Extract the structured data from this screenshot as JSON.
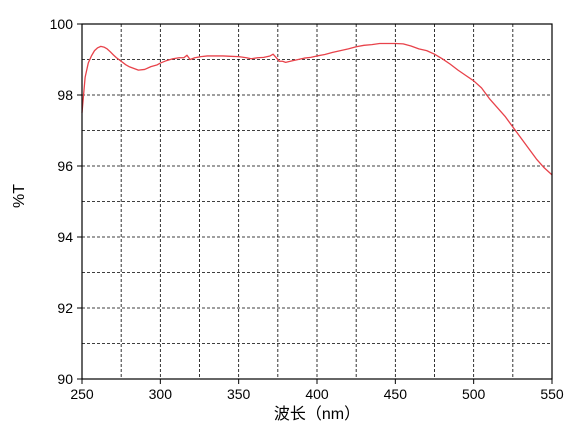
{
  "chart_data": {
    "type": "line",
    "xlabel": "波长（nm）",
    "ylabel": "%T",
    "xlim": [
      250,
      550
    ],
    "ylim": [
      90,
      100
    ],
    "x_ticks": [
      250,
      300,
      350,
      400,
      450,
      500,
      550
    ],
    "y_ticks": [
      90,
      92,
      94,
      96,
      98,
      100
    ],
    "x_tick_labels": [
      "250",
      "300",
      "350",
      "400",
      "450",
      "500",
      "550"
    ],
    "y_tick_labels": [
      "90",
      "92",
      "94",
      "96",
      "98",
      "100"
    ],
    "x_grid": [
      275,
      300,
      325,
      350,
      375,
      400,
      425,
      450,
      475,
      500,
      525
    ],
    "y_grid": [
      91,
      92,
      93,
      94,
      95,
      96,
      97,
      98,
      99
    ],
    "grid": true,
    "grid_style": "dashed",
    "colors": {
      "series": "#e8424a",
      "axis": "#000000",
      "grid": "#000000"
    },
    "series": [
      {
        "x": [
          250,
          252,
          254,
          256,
          258,
          260,
          262,
          264,
          266,
          268,
          270,
          272,
          275,
          278,
          280,
          283,
          286,
          290,
          294,
          298,
          300,
          304,
          308,
          312,
          315,
          317,
          319,
          322,
          326,
          330,
          335,
          340,
          345,
          350,
          355,
          358,
          362,
          366,
          370,
          372,
          374,
          376,
          378,
          380,
          384,
          388,
          392,
          396,
          400,
          405,
          410,
          415,
          420,
          425,
          430,
          435,
          440,
          445,
          450,
          455,
          460,
          465,
          470,
          475,
          480,
          485,
          490,
          495,
          500,
          505,
          510,
          515,
          520,
          525,
          530,
          535,
          540,
          545,
          550
        ],
        "y": [
          97.5,
          98.5,
          98.9,
          99.1,
          99.25,
          99.33,
          99.37,
          99.35,
          99.3,
          99.22,
          99.13,
          99.05,
          98.95,
          98.85,
          98.8,
          98.75,
          98.7,
          98.72,
          98.8,
          98.85,
          98.9,
          98.97,
          99.02,
          99.05,
          99.05,
          99.12,
          99.0,
          99.05,
          99.08,
          99.1,
          99.1,
          99.1,
          99.09,
          99.08,
          99.05,
          99.02,
          99.05,
          99.06,
          99.1,
          99.15,
          99.05,
          98.95,
          98.95,
          98.92,
          98.96,
          99.0,
          99.04,
          99.06,
          99.1,
          99.14,
          99.2,
          99.25,
          99.3,
          99.36,
          99.4,
          99.42,
          99.45,
          99.45,
          99.45,
          99.44,
          99.38,
          99.3,
          99.25,
          99.15,
          99.02,
          98.87,
          98.7,
          98.55,
          98.4,
          98.2,
          97.9,
          97.65,
          97.4,
          97.1,
          96.8,
          96.5,
          96.2,
          95.95,
          95.75
        ]
      }
    ]
  }
}
